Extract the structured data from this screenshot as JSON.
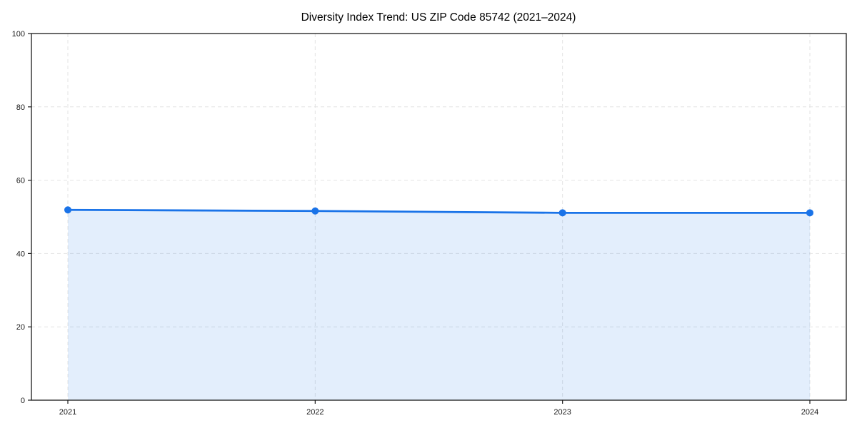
{
  "chart_data": {
    "type": "area",
    "title": "Diversity Index Trend: US ZIP Code 85742 (2021–2024)",
    "categories": [
      "2021",
      "2022",
      "2023",
      "2024"
    ],
    "series": [
      {
        "name": "Diversity Index",
        "values": [
          51.9,
          51.6,
          51.1,
          51.1
        ]
      }
    ],
    "xlabel": "",
    "ylabel": "",
    "ylim": [
      0,
      100
    ],
    "yticks": [
      0,
      20,
      40,
      60,
      80,
      100
    ],
    "grid": "dashed light-gray gridlines on both axes",
    "legend": "none",
    "plot_border": "black spines on all four sides",
    "colors": {
      "line": "#1a73e8",
      "marker": "#1a73e8",
      "area_fill_rgba": "rgba(26,115,232,0.12)",
      "gridline": "#e3e3e3",
      "axis": "#1a1a1a",
      "tick_label": "#1a1a1a",
      "title": "#000000",
      "background": "#ffffff"
    }
  }
}
